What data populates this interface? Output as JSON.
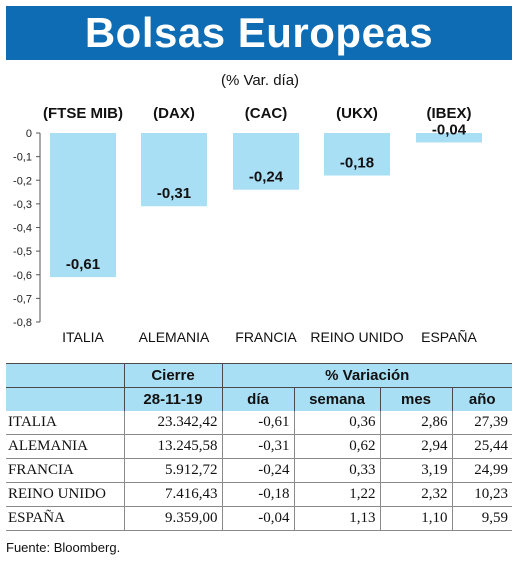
{
  "header": {
    "title": "Bolsas Europeas",
    "subtitle": "(% Var. día)"
  },
  "chart_data": {
    "type": "bar",
    "categories": [
      "ITALIA",
      "ALEMANIA",
      "FRANCIA",
      "REINO UNIDO",
      "ESPAÑA"
    ],
    "index_labels": [
      "(FTSE MIB)",
      "(DAX)",
      "(CAC)",
      "(UKX)",
      "(IBEX)"
    ],
    "values": [
      -0.61,
      -0.31,
      -0.24,
      -0.18,
      -0.04
    ],
    "value_labels": [
      "-0,61",
      "-0,31",
      "-0,24",
      "-0,18",
      "-0,04"
    ],
    "yticks": [
      "0",
      "-0,1",
      "-0,2",
      "-0,3",
      "-0,4",
      "-0,5",
      "-0,6",
      "-0,7",
      "-0,8"
    ],
    "ylim": [
      -0.8,
      0
    ],
    "bar_color": "#a9dff4",
    "grid": false
  },
  "table": {
    "group_headers": [
      "Cierre",
      "% Variación"
    ],
    "date": "28-11-19",
    "columns": [
      "día",
      "semana",
      "mes",
      "año"
    ],
    "rows": [
      {
        "name": "ITALIA",
        "cierre": "23.342,42",
        "dia": "-0,61",
        "semana": "0,36",
        "mes": "2,86",
        "ano": "27,39"
      },
      {
        "name": "ALEMANIA",
        "cierre": "13.245,58",
        "dia": "-0,31",
        "semana": "0,62",
        "mes": "2,94",
        "ano": "25,44"
      },
      {
        "name": "FRANCIA",
        "cierre": "5.912,72",
        "dia": "-0,24",
        "semana": "0,33",
        "mes": "3,19",
        "ano": "24,99"
      },
      {
        "name": "REINO UNIDO",
        "cierre": "7.416,43",
        "dia": "-0,18",
        "semana": "1,22",
        "mes": "2,32",
        "ano": "10,23"
      },
      {
        "name": "ESPAÑA",
        "cierre": "9.359,00",
        "dia": "-0,04",
        "semana": "1,13",
        "mes": "1,10",
        "ano": "9,59"
      }
    ]
  },
  "footer": {
    "source": "Fuente: Bloomberg."
  },
  "colors": {
    "banner": "#0d6cb3",
    "accent": "#a9dff4"
  }
}
